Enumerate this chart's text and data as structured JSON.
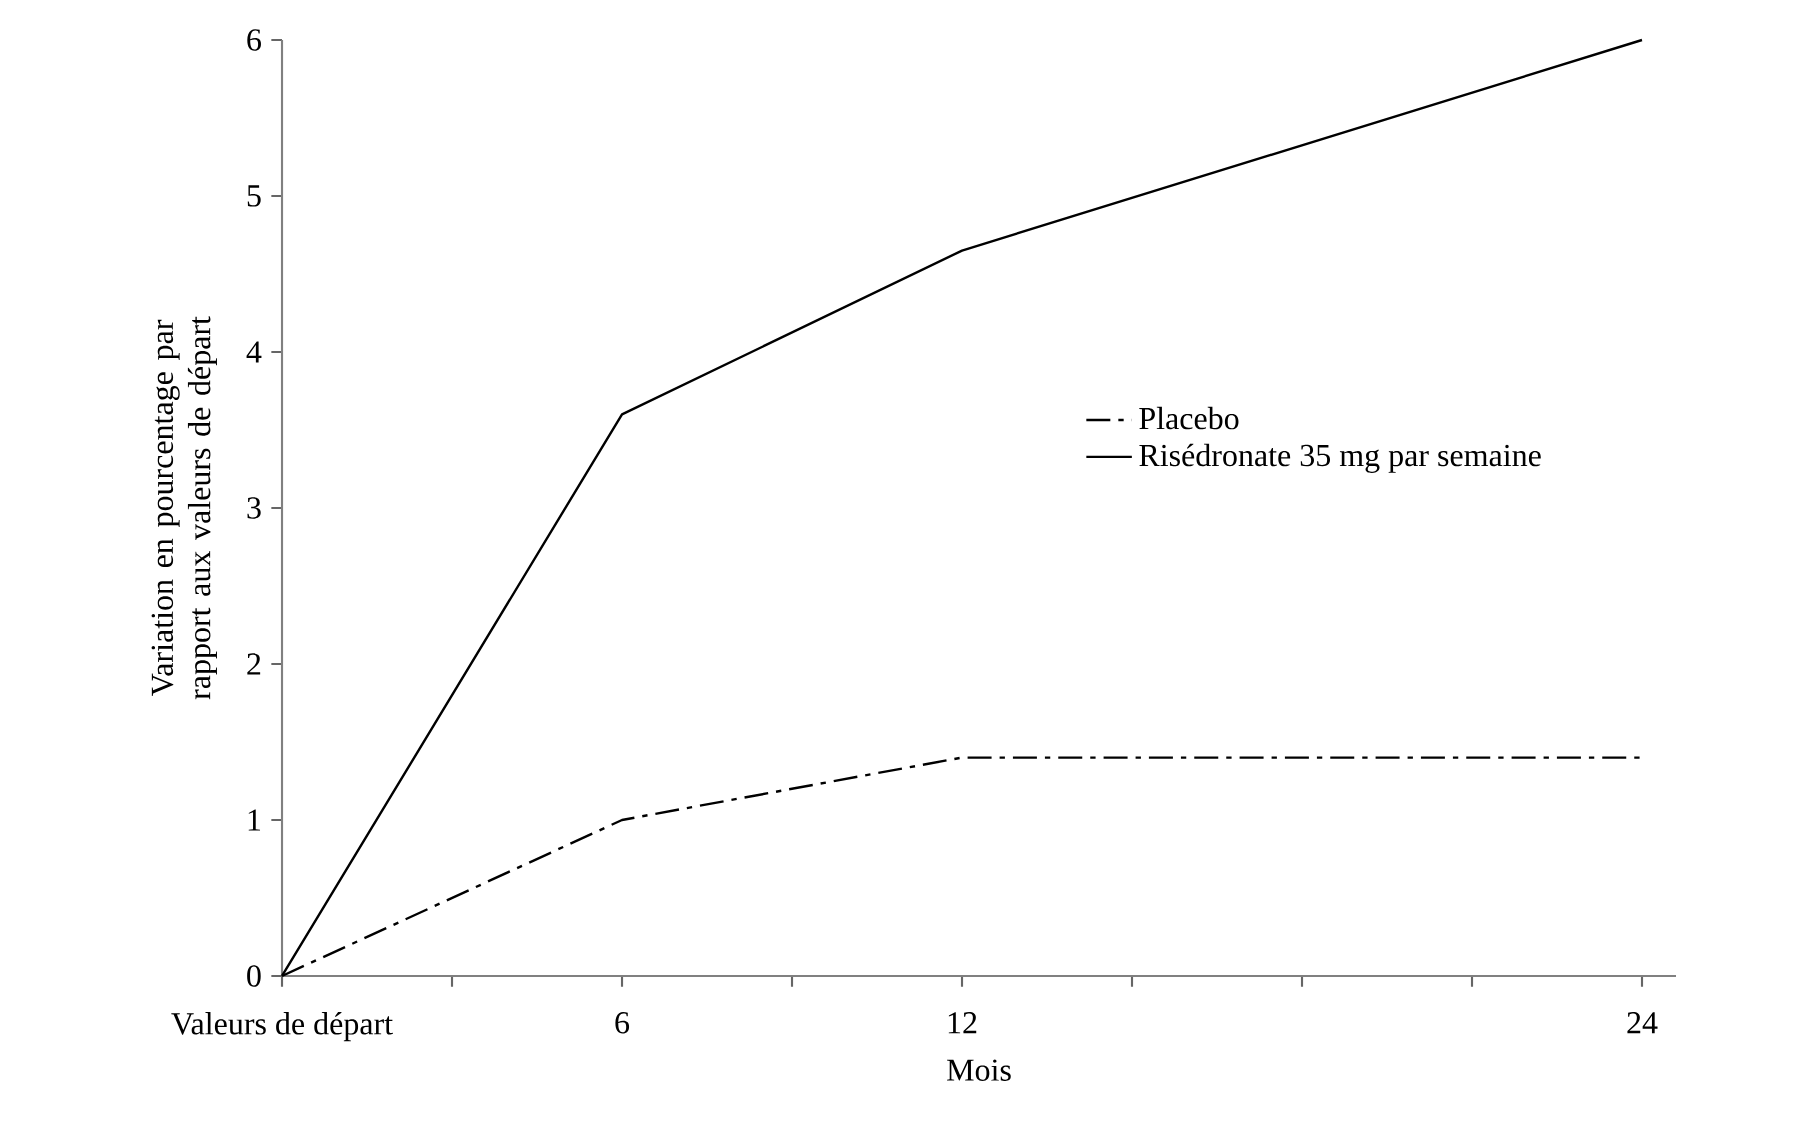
{
  "chart_data": {
    "type": "line",
    "xlabel": "Mois",
    "ylabel": "Variation en pourcentage par rapport aux valeurs de départ",
    "x": [
      0,
      6,
      12,
      24
    ],
    "series": [
      {
        "name": "Placebo",
        "color": "#000000",
        "line_style": "dashdot",
        "values": [
          0,
          1.0,
          1.4,
          1.4
        ]
      },
      {
        "name": "Risédronate 35 mg par semaine",
        "color": "#000000",
        "line_style": "solid",
        "values": [
          0,
          3.6,
          4.65,
          6.0
        ]
      }
    ],
    "xlim": [
      0,
      24.6
    ],
    "ylim": [
      0,
      6
    ],
    "xticks": [
      {
        "value": 0,
        "label": "Valeurs de départ"
      },
      {
        "value": 3,
        "label": null
      },
      6,
      {
        "value": 9,
        "label": null
      },
      12,
      {
        "value": 15,
        "label": null
      },
      {
        "value": 18,
        "label": null
      },
      {
        "value": 21,
        "label": null
      },
      24
    ],
    "yticks": [
      0,
      1,
      2,
      3,
      4,
      5,
      6
    ],
    "grid": false,
    "legend": "right",
    "marker": "none"
  }
}
